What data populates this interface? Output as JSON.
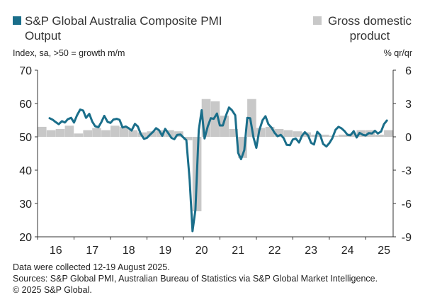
{
  "legend": {
    "line_series": "S&P Global Australia Composite PMI Output",
    "bar_series": "Gross domestic product"
  },
  "axis_units": {
    "left": "Index, sa, >50 = growth m/m",
    "right": "% qr/qr"
  },
  "footnotes": {
    "collection": "Data were collected 12-19 August 2025.",
    "sources": "Sources: S&P Global PMI, Australian Bureau of Statistics via S&P Global Market Intelligence.",
    "copyright": "© 2025 S&P Global."
  },
  "colors": {
    "pmi_line": "#1a6e8a",
    "gdp_bars": "#c8c8c8",
    "axis": "#333333"
  },
  "chart_data": {
    "type": "line",
    "title": "",
    "xlabel": "",
    "ylabel_left": "Index, sa, >50 = growth m/m",
    "ylabel_right": "% qr/qr",
    "x_ticks": [
      "16",
      "17",
      "18",
      "19",
      "20",
      "21",
      "22",
      "23",
      "24",
      "25"
    ],
    "y_left_ticks": [
      20,
      30,
      40,
      50,
      60,
      70
    ],
    "y_right_ticks": [
      "-9",
      "-6",
      "-3",
      "0",
      "3",
      "6"
    ],
    "ylim_left": [
      20,
      70
    ],
    "ylim_right": [
      -9,
      6
    ],
    "xlim": [
      2016.0,
      2025.75
    ],
    "grid": false,
    "series": [
      {
        "name": "S&P Global Australia Composite PMI Output",
        "kind": "line",
        "axis": "left",
        "x": [
          2016.33,
          2016.42,
          2016.5,
          2016.58,
          2016.67,
          2016.75,
          2016.83,
          2016.92,
          2017.0,
          2017.08,
          2017.17,
          2017.25,
          2017.33,
          2017.42,
          2017.5,
          2017.58,
          2017.67,
          2017.75,
          2017.83,
          2017.92,
          2018.0,
          2018.08,
          2018.17,
          2018.25,
          2018.33,
          2018.42,
          2018.5,
          2018.58,
          2018.67,
          2018.75,
          2018.83,
          2018.92,
          2019.0,
          2019.08,
          2019.17,
          2019.25,
          2019.33,
          2019.42,
          2019.5,
          2019.58,
          2019.67,
          2019.75,
          2019.83,
          2019.92,
          2020.0,
          2020.08,
          2020.17,
          2020.25,
          2020.33,
          2020.42,
          2020.5,
          2020.58,
          2020.67,
          2020.75,
          2020.83,
          2020.92,
          2021.0,
          2021.08,
          2021.17,
          2021.25,
          2021.33,
          2021.42,
          2021.5,
          2021.58,
          2021.67,
          2021.75,
          2021.83,
          2021.92,
          2022.0,
          2022.08,
          2022.17,
          2022.25,
          2022.33,
          2022.42,
          2022.5,
          2022.58,
          2022.67,
          2022.75,
          2022.83,
          2022.92,
          2023.0,
          2023.08,
          2023.17,
          2023.25,
          2023.33,
          2023.42,
          2023.5,
          2023.58,
          2023.67,
          2023.75,
          2023.83,
          2023.92,
          2024.0,
          2024.08,
          2024.17,
          2024.25,
          2024.33,
          2024.42,
          2024.5,
          2024.58,
          2024.67,
          2024.75,
          2024.83,
          2024.92,
          2025.0,
          2025.08,
          2025.17,
          2025.25,
          2025.33,
          2025.42,
          2025.5,
          2025.58
        ],
        "values": [
          55.6,
          55.1,
          54.4,
          53.8,
          54.7,
          54.3,
          55.3,
          55.7,
          54.3,
          56.4,
          58.2,
          57.9,
          55.7,
          56.9,
          54.6,
          53.2,
          52.9,
          54.4,
          56.3,
          54.5,
          54.2,
          55.2,
          55.4,
          55.1,
          52.8,
          53.1,
          52.6,
          51.9,
          53.9,
          53.1,
          50.9,
          49.4,
          49.7,
          50.6,
          51.5,
          52.6,
          52.0,
          50.3,
          52.4,
          51.2,
          49.7,
          49.3,
          50.6,
          50.7,
          49.8,
          49.0,
          37.2,
          21.7,
          28.1,
          52.0,
          58.0,
          49.5,
          53.2,
          55.6,
          55.4,
          57.0,
          53.4,
          53.4,
          56.5,
          58.8,
          58.0,
          56.5,
          45.2,
          43.3,
          46.0,
          55.7,
          55.6,
          49.9,
          46.7,
          51.9,
          55.0,
          56.2,
          53.8,
          52.7,
          51.2,
          50.2,
          50.6,
          49.6,
          47.6,
          47.5,
          49.2,
          49.5,
          48.3,
          50.3,
          51.4,
          50.4,
          48.2,
          47.7,
          51.5,
          50.6,
          47.9,
          47.1,
          48.1,
          49.5,
          52.1,
          53.0,
          52.6,
          51.7,
          50.6,
          50.5,
          51.7,
          49.8,
          51.2,
          50.6,
          50.4,
          51.1,
          51.0,
          51.8,
          51.0,
          51.6,
          53.8,
          54.9
        ]
      },
      {
        "name": "Gross domestic product",
        "kind": "bar",
        "axis": "right",
        "x": [
          2016.0,
          2016.25,
          2016.5,
          2016.75,
          2017.0,
          2017.25,
          2017.5,
          2017.75,
          2018.0,
          2018.25,
          2018.5,
          2018.75,
          2019.0,
          2019.25,
          2019.5,
          2019.75,
          2020.0,
          2020.25,
          2020.5,
          2020.75,
          2021.0,
          2021.25,
          2021.5,
          2021.75,
          2022.0,
          2022.25,
          2022.5,
          2022.75,
          2023.0,
          2023.25,
          2023.5,
          2023.75,
          2024.0,
          2024.25,
          2024.5,
          2024.75,
          2025.0,
          2025.25,
          2025.5
        ],
        "values": [
          0.9,
          0.6,
          0.7,
          1.0,
          0.3,
          0.6,
          0.8,
          0.6,
          1.0,
          0.9,
          0.6,
          0.4,
          0.5,
          0.6,
          0.6,
          0.5,
          -0.3,
          -6.7,
          3.4,
          3.2,
          1.9,
          0.7,
          -1.9,
          3.4,
          0.8,
          0.9,
          0.7,
          0.6,
          0.5,
          0.4,
          0.2,
          0.2,
          0.1,
          0.2,
          0.3,
          0.6,
          0.6,
          0.2,
          0.6
        ]
      }
    ]
  }
}
